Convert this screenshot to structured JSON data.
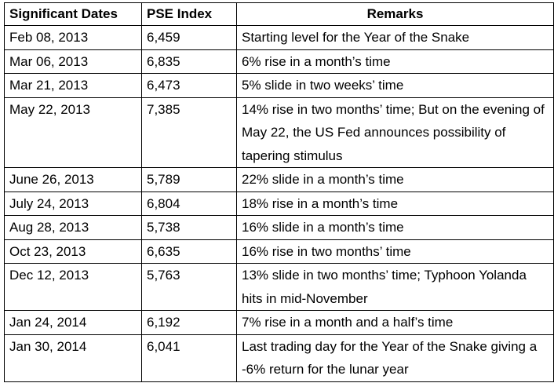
{
  "table": {
    "headers": [
      "Significant Dates",
      "PSE Index",
      "Remarks"
    ],
    "rows": [
      {
        "date": "Feb 08, 2013",
        "index": "6,459",
        "remarks": "Starting level for the Year of the Snake"
      },
      {
        "date": "Mar 06, 2013",
        "index": "6,835",
        "remarks": "6% rise in a month’s time"
      },
      {
        "date": "Mar 21, 2013",
        "index": "6,473",
        "remarks": "5% slide in two weeks’ time"
      },
      {
        "date": "May 22, 2013",
        "index": "7,385",
        "remarks": "14% rise in two months’ time; But on the evening of May 22, the US Fed announces possibility of tapering stimulus"
      },
      {
        "date": "June 26, 2013",
        "index": "5,789",
        "remarks": "22% slide in a month’s time"
      },
      {
        "date": "July 24, 2013",
        "index": "6,804",
        "remarks": "18% rise in a month’s time"
      },
      {
        "date": "Aug 28, 2013",
        "index": "5,738",
        "remarks": "16% slide in a month’s time"
      },
      {
        "date": "Oct 23, 2013",
        "index": "6,635",
        "remarks": "16% rise in two months’ time"
      },
      {
        "date": "Dec 12, 2013",
        "index": "5,763",
        "remarks": "13% slide in two months’ time; Typhoon Yolanda hits in mid-November"
      },
      {
        "date": "Jan 24, 2014",
        "index": "6,192",
        "remarks": "7% rise in a month and a half’s time"
      },
      {
        "date": "Jan 30, 2014",
        "index": "6,041",
        "remarks": "Last trading day for the Year of the Snake giving a -6% return for the lunar year"
      }
    ]
  }
}
